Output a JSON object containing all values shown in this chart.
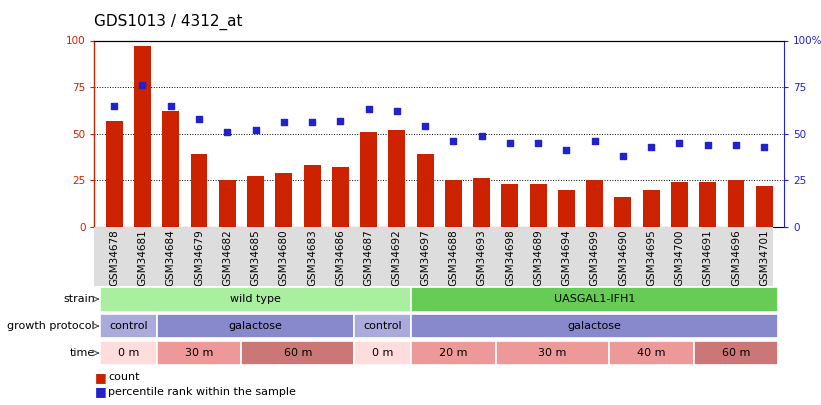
{
  "title": "GDS1013 / 4312_at",
  "samples": [
    "GSM34678",
    "GSM34681",
    "GSM34684",
    "GSM34679",
    "GSM34682",
    "GSM34685",
    "GSM34680",
    "GSM34683",
    "GSM34686",
    "GSM34687",
    "GSM34692",
    "GSM34697",
    "GSM34688",
    "GSM34693",
    "GSM34698",
    "GSM34689",
    "GSM34694",
    "GSM34699",
    "GSM34690",
    "GSM34695",
    "GSM34700",
    "GSM34691",
    "GSM34696",
    "GSM34701"
  ],
  "bar_values": [
    57,
    97,
    62,
    39,
    25,
    27,
    29,
    33,
    32,
    51,
    52,
    39,
    25,
    26,
    23,
    23,
    20,
    25,
    16,
    20,
    24,
    24,
    25,
    22
  ],
  "dot_values": [
    65,
    76,
    65,
    58,
    51,
    52,
    56,
    56,
    57,
    63,
    62,
    54,
    46,
    49,
    45,
    45,
    41,
    46,
    38,
    43,
    45,
    44,
    44,
    43
  ],
  "bar_color": "#cc2200",
  "dot_color": "#2222cc",
  "ylim": [
    0,
    100
  ],
  "grid_lines": [
    25,
    50,
    75
  ],
  "strain_groups": [
    {
      "label": "wild type",
      "start": 0,
      "end": 11,
      "color": "#aaeea0"
    },
    {
      "label": "UASGAL1-IFH1",
      "start": 11,
      "end": 24,
      "color": "#66cc55"
    }
  ],
  "protocol_groups": [
    {
      "label": "control",
      "start": 0,
      "end": 2,
      "color": "#aaaadd"
    },
    {
      "label": "galactose",
      "start": 2,
      "end": 9,
      "color": "#8888cc"
    },
    {
      "label": "control",
      "start": 9,
      "end": 11,
      "color": "#aaaadd"
    },
    {
      "label": "galactose",
      "start": 11,
      "end": 24,
      "color": "#8888cc"
    }
  ],
  "time_groups": [
    {
      "label": "0 m",
      "start": 0,
      "end": 2,
      "color": "#ffdddd"
    },
    {
      "label": "30 m",
      "start": 2,
      "end": 5,
      "color": "#ee9999"
    },
    {
      "label": "60 m",
      "start": 5,
      "end": 9,
      "color": "#cc7777"
    },
    {
      "label": "0 m",
      "start": 9,
      "end": 11,
      "color": "#ffdddd"
    },
    {
      "label": "20 m",
      "start": 11,
      "end": 14,
      "color": "#ee9999"
    },
    {
      "label": "30 m",
      "start": 14,
      "end": 18,
      "color": "#ee9999"
    },
    {
      "label": "40 m",
      "start": 18,
      "end": 21,
      "color": "#ee9999"
    },
    {
      "label": "60 m",
      "start": 21,
      "end": 24,
      "color": "#cc7777"
    }
  ],
  "row_labels": [
    "strain",
    "growth protocol",
    "time"
  ],
  "legend_bar_label": "count",
  "legend_dot_label": "percentile rank within the sample",
  "background_color": "#ffffff",
  "title_fontsize": 11,
  "tick_fontsize": 7.5,
  "label_fontsize": 8
}
